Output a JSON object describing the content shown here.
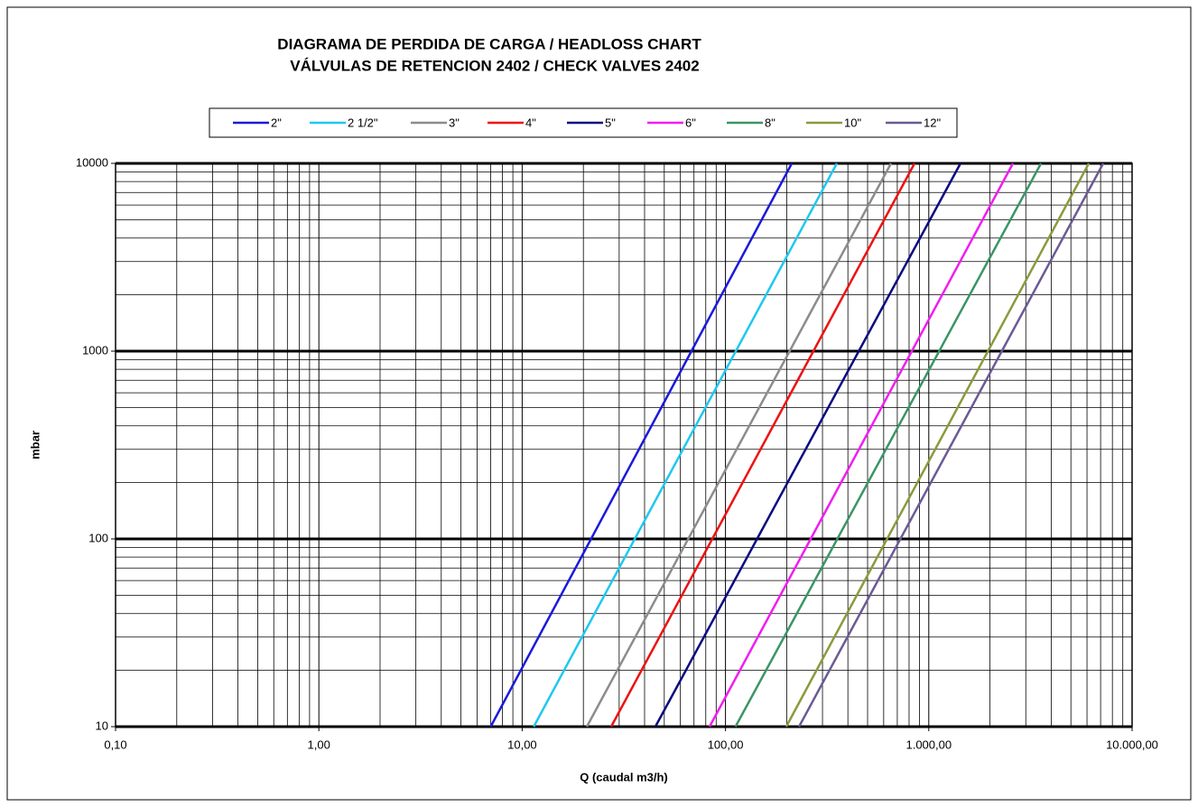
{
  "chart_data": {
    "type": "line",
    "title": "DIAGRAMA DE PERDIDA DE CARGA / HEADLOSS CHART",
    "subtitle": "VÁLVULAS DE RETENCION 2402 / CHECK VALVES 2402",
    "x_label": "Q (caudal m3/h)",
    "y_label": "mbar",
    "xlog": true,
    "ylog": true,
    "grid": true,
    "legend": "top",
    "xlim": [
      0.1,
      10000
    ],
    "ylim": [
      10,
      10000
    ],
    "xticks": [
      {
        "value": 0.1,
        "label": "0,10"
      },
      {
        "value": 1,
        "label": "1,00"
      },
      {
        "value": 10,
        "label": "10,00"
      },
      {
        "value": 100,
        "label": "100,00"
      },
      {
        "value": 1000,
        "label": "1.000,00"
      },
      {
        "value": 10000,
        "label": "10.000,00"
      }
    ],
    "yticks": [
      10,
      100,
      1000,
      10000
    ],
    "series": [
      {
        "name": "2\"",
        "color": "#1a1adb",
        "x": [
          7.0,
          212
        ],
        "values": [
          10,
          10000
        ]
      },
      {
        "name": "2 1/2\"",
        "color": "#1ec8f0",
        "x": [
          11.4,
          353
        ],
        "values": [
          10,
          10000
        ]
      },
      {
        "name": "3\"",
        "color": "#8c8c8c",
        "x": [
          20.8,
          652
        ],
        "values": [
          10,
          10000
        ]
      },
      {
        "name": "4\"",
        "color": "#ee1111",
        "x": [
          27.4,
          851
        ],
        "values": [
          10,
          10000
        ]
      },
      {
        "name": "5\"",
        "color": "#0a0a80",
        "x": [
          45.2,
          1432
        ],
        "values": [
          10,
          10000
        ]
      },
      {
        "name": "6\"",
        "color": "#f01ef0",
        "x": [
          83.5,
          2594
        ],
        "values": [
          10,
          10000
        ]
      },
      {
        "name": "8\"",
        "color": "#3a9566",
        "x": [
          112,
          3565
        ],
        "values": [
          10,
          10000
        ]
      },
      {
        "name": "10\"",
        "color": "#8a9a3c",
        "x": [
          199,
          6124
        ],
        "values": [
          10,
          10000
        ]
      },
      {
        "name": "12\"",
        "color": "#6c5a94",
        "x": [
          230,
          7211
        ],
        "values": [
          10,
          10000
        ]
      }
    ]
  }
}
